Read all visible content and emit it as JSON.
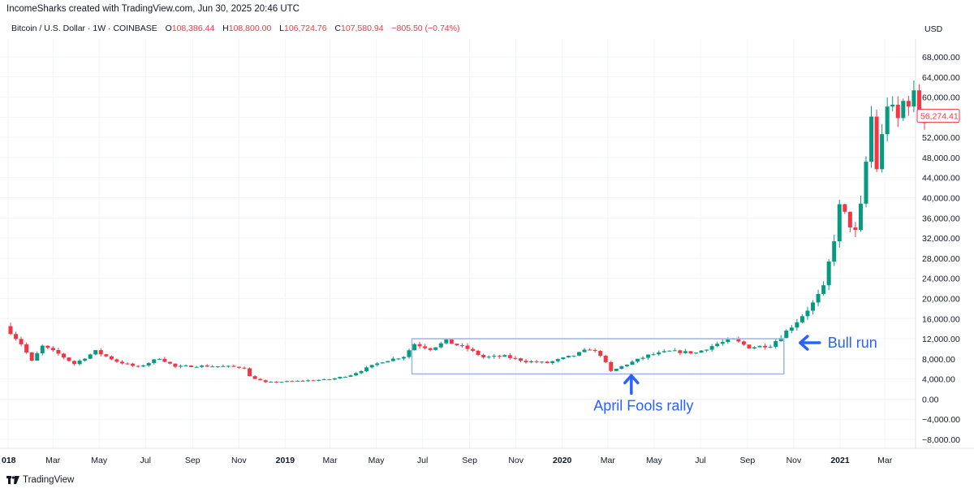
{
  "header": {
    "attribution": "IncomeSharks created with TradingView.com, Jun 30, 2025 20:46 UTC",
    "symbol": "Bitcoin / U.S. Dollar · 1W · COINBASE",
    "open_label": "O",
    "open": "108,386.44",
    "high_label": "H",
    "high": "108,800.00",
    "low_label": "L",
    "low": "106,724.76",
    "close_label": "C",
    "close": "107,580.94",
    "change": "−805.50 (−0.74%)"
  },
  "currency": "USD",
  "footer": {
    "brand": "TradingView"
  },
  "price_badge": {
    "text": "56,274.41",
    "value": 56274.41
  },
  "colors": {
    "up": "#089981",
    "down": "#f23645",
    "box": "#9db4e8",
    "annotation": "#2962ff",
    "grid": "#f0f3fa"
  },
  "chart_data": {
    "type": "candlestick",
    "title": "",
    "xlabel": "",
    "ylabel": "",
    "ylim": [
      -9000,
      72000
    ],
    "y_ticks": [
      "68,000.00",
      "64,000.00",
      "60,000.00",
      "56,000.00",
      "52,000.00",
      "48,000.00",
      "44,000.00",
      "40,000.00",
      "36,000.00",
      "32,000.00",
      "28,000.00",
      "24,000.00",
      "20,000.00",
      "16,000.00",
      "12,000.00",
      "8,000.00",
      "4,000.00",
      "0.00",
      "−4,000.00",
      "−8,000.00"
    ],
    "y_tick_values": [
      68000,
      64000,
      60000,
      56000,
      52000,
      48000,
      44000,
      40000,
      36000,
      32000,
      28000,
      24000,
      20000,
      16000,
      12000,
      8000,
      4000,
      0,
      -4000,
      -8000
    ],
    "x_labels": [
      {
        "label": "018",
        "date": "2018-01-01",
        "bold": true
      },
      {
        "label": "Mar",
        "date": "2018-03-01"
      },
      {
        "label": "May",
        "date": "2018-05-01"
      },
      {
        "label": "Jul",
        "date": "2018-07-01"
      },
      {
        "label": "Sep",
        "date": "2018-09-01"
      },
      {
        "label": "Nov",
        "date": "2018-11-01"
      },
      {
        "label": "2019",
        "date": "2019-01-01",
        "bold": true
      },
      {
        "label": "Mar",
        "date": "2019-03-01"
      },
      {
        "label": "May",
        "date": "2019-05-01"
      },
      {
        "label": "Jul",
        "date": "2019-07-01"
      },
      {
        "label": "Sep",
        "date": "2019-09-01"
      },
      {
        "label": "Nov",
        "date": "2019-11-01"
      },
      {
        "label": "2020",
        "date": "2020-01-01",
        "bold": true
      },
      {
        "label": "Mar",
        "date": "2020-03-01"
      },
      {
        "label": "May",
        "date": "2020-05-01"
      },
      {
        "label": "Jul",
        "date": "2020-07-01"
      },
      {
        "label": "Sep",
        "date": "2020-09-01"
      },
      {
        "label": "Nov",
        "date": "2020-11-01"
      },
      {
        "label": "2021",
        "date": "2021-01-01",
        "bold": true
      },
      {
        "label": "Mar",
        "date": "2021-03-01"
      }
    ],
    "x_start_date": "2018-01-01",
    "x_end_date": "2021-05-10",
    "path_anchors": [
      [
        "2018-01-01",
        14500
      ],
      [
        "2018-01-22",
        11000
      ],
      [
        "2018-02-05",
        7500
      ],
      [
        "2018-02-19",
        10500
      ],
      [
        "2018-03-12",
        9000
      ],
      [
        "2018-04-02",
        7000
      ],
      [
        "2018-04-30",
        9500
      ],
      [
        "2018-05-28",
        7500
      ],
      [
        "2018-06-25",
        6300
      ],
      [
        "2018-07-23",
        8200
      ],
      [
        "2018-08-13",
        6400
      ],
      [
        "2018-09-10",
        6600
      ],
      [
        "2018-10-15",
        6500
      ],
      [
        "2018-11-12",
        6300
      ],
      [
        "2018-11-19",
        4500
      ],
      [
        "2018-12-10",
        3300
      ],
      [
        "2019-01-21",
        3600
      ],
      [
        "2019-03-04",
        3900
      ],
      [
        "2019-04-01",
        4800
      ],
      [
        "2019-05-13",
        7500
      ],
      [
        "2019-06-10",
        8500
      ],
      [
        "2019-06-24",
        11000
      ],
      [
        "2019-07-15",
        10000
      ],
      [
        "2019-08-05",
        11500
      ],
      [
        "2019-09-02",
        10000
      ],
      [
        "2019-09-23",
        8300
      ],
      [
        "2019-10-21",
        8500
      ],
      [
        "2019-11-18",
        7500
      ],
      [
        "2019-12-16",
        7200
      ],
      [
        "2020-01-20",
        8700
      ],
      [
        "2020-02-10",
        10000
      ],
      [
        "2020-02-24",
        8800
      ],
      [
        "2020-03-09",
        5500
      ],
      [
        "2020-03-23",
        6500
      ],
      [
        "2020-04-27",
        8700
      ],
      [
        "2020-05-25",
        9500
      ],
      [
        "2020-06-29",
        9200
      ],
      [
        "2020-07-27",
        11000
      ],
      [
        "2020-08-17",
        11800
      ],
      [
        "2020-09-07",
        10300
      ],
      [
        "2020-10-05",
        10700
      ],
      [
        "2020-10-19",
        12500
      ],
      [
        "2020-11-09",
        15500
      ],
      [
        "2020-11-30",
        19000
      ],
      [
        "2020-12-14",
        22000
      ],
      [
        "2020-12-28",
        32000
      ],
      [
        "2021-01-04",
        38000
      ],
      [
        "2021-01-11",
        36500
      ],
      [
        "2021-01-25",
        33000
      ],
      [
        "2021-02-01",
        38000
      ],
      [
        "2021-02-08",
        47000
      ],
      [
        "2021-02-15",
        56000
      ],
      [
        "2021-02-22",
        46000
      ],
      [
        "2021-03-01",
        52000
      ],
      [
        "2021-03-08",
        59000
      ],
      [
        "2021-03-15",
        57000
      ],
      [
        "2021-03-22",
        55500
      ],
      [
        "2021-03-29",
        59000
      ],
      [
        "2021-04-12",
        60000
      ],
      [
        "2021-04-19",
        56000
      ]
    ],
    "box": {
      "start_date": "2019-06-17",
      "end_date": "2020-10-19",
      "top": 12000,
      "bottom": 5000
    },
    "annotations": [
      {
        "text": "April Fools rally",
        "date": "2020-04-01",
        "value": 5000,
        "arrow": "up"
      },
      {
        "text": "Bull run",
        "date": "2020-10-19",
        "value": 12000,
        "arrow": "left"
      }
    ]
  }
}
